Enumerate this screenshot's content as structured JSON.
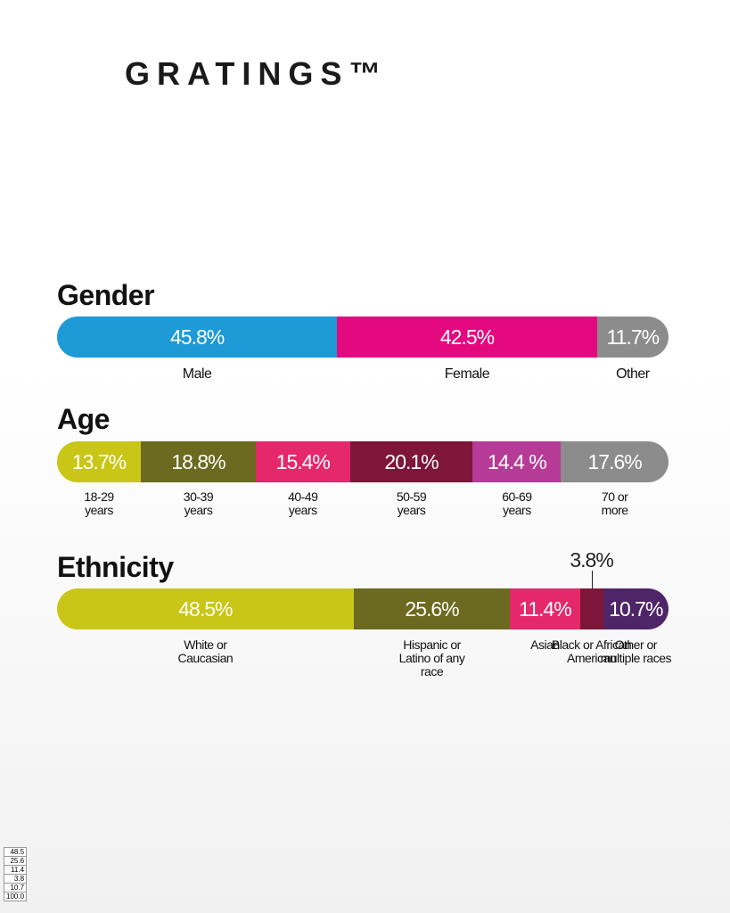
{
  "logo": "GRATINGS™",
  "chart_data": [
    {
      "type": "stacked-bar",
      "title": "Gender",
      "xlim": [
        0,
        100
      ],
      "series": [
        {
          "name": "Male",
          "color": "#1e9ad6",
          "values": [
            45.8
          ],
          "value_labels": [
            "45.8%"
          ]
        },
        {
          "name": "Female",
          "color": "#e5097f",
          "values": [
            42.5
          ],
          "value_labels": [
            "42.5%"
          ]
        },
        {
          "name": "Other",
          "color": "#8c8c8c",
          "values": [
            11.7
          ],
          "value_labels": [
            "11.7%"
          ]
        }
      ]
    },
    {
      "type": "stacked-bar",
      "title": "Age",
      "xlim": [
        0,
        100
      ],
      "series": [
        {
          "name": "18-29 years",
          "color": "#c9c617",
          "values": [
            13.7
          ],
          "value_labels": [
            "13.7%"
          ]
        },
        {
          "name": "30-39 years",
          "color": "#6b6a20",
          "values": [
            18.8
          ],
          "value_labels": [
            "18.8%"
          ]
        },
        {
          "name": "40-49 years",
          "color": "#e5286b",
          "values": [
            15.4
          ],
          "value_labels": [
            "15.4%"
          ]
        },
        {
          "name": "50-59 years",
          "color": "#7d1639",
          "values": [
            20.1
          ],
          "value_labels": [
            "20.1%"
          ]
        },
        {
          "name": "60-69 years",
          "color": "#b53b97",
          "values": [
            14.4
          ],
          "value_labels": [
            "14.4 %"
          ]
        },
        {
          "name": "70 or more",
          "color": "#8c8c8c",
          "values": [
            17.6
          ],
          "value_labels": [
            "17.6%"
          ]
        }
      ]
    },
    {
      "type": "stacked-bar",
      "title": "Ethnicity",
      "xlim": [
        0,
        100
      ],
      "series": [
        {
          "name": "White or Caucasian",
          "color": "#c9c617",
          "values": [
            48.5
          ],
          "value_labels": [
            "48.5%"
          ]
        },
        {
          "name": "Hispanic or Latino of any race",
          "color": "#6b6a20",
          "values": [
            25.6
          ],
          "value_labels": [
            "25.6%"
          ]
        },
        {
          "name": "Asian",
          "color": "#e5286b",
          "values": [
            11.4
          ],
          "value_labels": [
            "11.4%"
          ]
        },
        {
          "name": "Black or African American",
          "color": "#7d1639",
          "values": [
            3.8
          ],
          "value_labels": [
            "3.8%"
          ]
        },
        {
          "name": "Other or multiple races",
          "color": "#4e2566",
          "values": [
            10.7
          ],
          "value_labels": [
            "10.7%"
          ]
        }
      ]
    }
  ],
  "table": {
    "rows": [
      "48.5",
      "25.6",
      "11.4",
      "3.8",
      "10.7",
      "100.0"
    ]
  }
}
